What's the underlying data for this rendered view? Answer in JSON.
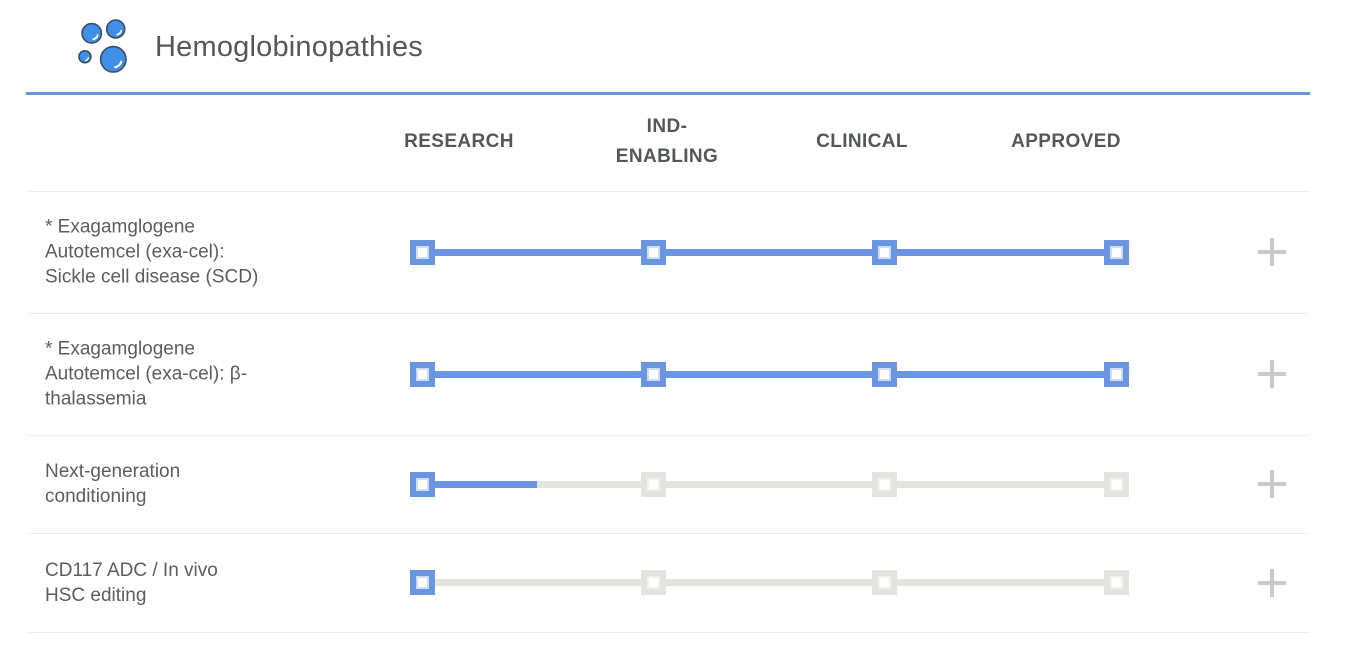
{
  "header": {
    "title": "Hemoglobinopathies",
    "icon": "blood-cells-icon"
  },
  "stage_columns": [
    {
      "key": "research",
      "label": "RESEARCH"
    },
    {
      "key": "ind-enabling",
      "label": "IND-ENABLING"
    },
    {
      "key": "clinical",
      "label": "CLINICAL"
    },
    {
      "key": "approved",
      "label": "APPROVED"
    }
  ],
  "programs": [
    {
      "label": "* Exagamglogene\nAutotemcel (exa-cel):\nSickle cell disease (SCD)",
      "stages": [
        "complete",
        "complete",
        "complete",
        "complete"
      ],
      "track_fill_percent": 100,
      "expand_icon": "plus-icon"
    },
    {
      "label": "* Exagamglogene\nAutotemcel (exa-cel): β-\nthalassemia",
      "stages": [
        "complete",
        "complete",
        "complete",
        "complete"
      ],
      "track_fill_percent": 100,
      "expand_icon": "plus-icon"
    },
    {
      "label": "Next-generation\nconditioning",
      "stages": [
        "complete",
        "pending",
        "pending",
        "pending"
      ],
      "track_fill_percent": 16.5,
      "expand_icon": "plus-icon"
    },
    {
      "label": "CD117 ADC / In vivo\nHSC editing",
      "stages": [
        "complete",
        "pending",
        "pending",
        "pending"
      ],
      "track_fill_percent": 1,
      "expand_icon": "plus-icon"
    }
  ],
  "colors": {
    "active_blue": "#6A95E1",
    "inactive_gray": "#E3E3E0",
    "icon_blue": "#3F8FE8",
    "icon_outline": "#3C4D63",
    "separator_gray": "#ECECEA",
    "heading_text": "#54585B",
    "label_text": "#5A5E60",
    "plus_gray": "#C9C9C7"
  }
}
